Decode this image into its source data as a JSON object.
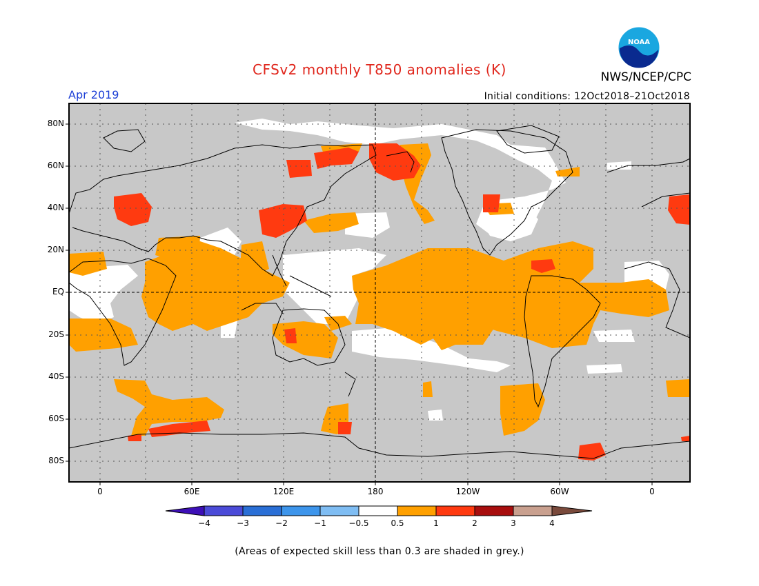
{
  "title": "CFSv2 monthly T850 anomalies (K)",
  "agency": "NWS/NCEP/CPC",
  "logo_text": "NOAA",
  "period": "Apr 2019",
  "initial_conditions": "Initial conditions: 12Oct2018–21Oct2018",
  "lat_labels": [
    "80N",
    "60N",
    "40N",
    "20N",
    "EQ",
    "20S",
    "40S",
    "60S",
    "80S"
  ],
  "lon_labels": [
    "0",
    "60E",
    "120E",
    "180",
    "120W",
    "60W",
    "0"
  ],
  "colorbar": {
    "labels": [
      "−4",
      "−3",
      "−2",
      "−1",
      "−0.5",
      "0.5",
      "1",
      "2",
      "3",
      "4"
    ],
    "colors": [
      "#3d0fb7",
      "#4b4bd8",
      "#2a6fd6",
      "#3d95eb",
      "#7fbdf3",
      "#ffffff",
      "#ffa000",
      "#ff3a10",
      "#a80e0e",
      "#c9a08f",
      "#7a4a3c"
    ]
  },
  "footnote": "(Areas of expected skill less than 0.3 are shaded in grey.)",
  "colors": {
    "no_skill": "#c8c8c8",
    "title": "#e0261c",
    "period": "#1c3fd6"
  }
}
